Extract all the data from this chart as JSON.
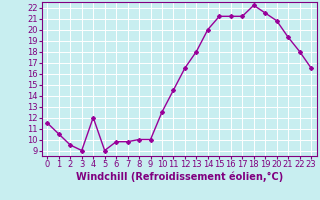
{
  "x": [
    0,
    1,
    2,
    3,
    4,
    5,
    6,
    7,
    8,
    9,
    10,
    11,
    12,
    13,
    14,
    15,
    16,
    17,
    18,
    19,
    20,
    21,
    22,
    23
  ],
  "y": [
    11.5,
    10.5,
    9.5,
    9.0,
    12.0,
    9.0,
    9.8,
    9.8,
    10.0,
    10.0,
    12.5,
    14.5,
    16.5,
    18.0,
    20.0,
    21.2,
    21.2,
    21.2,
    22.2,
    21.5,
    20.8,
    19.3,
    18.0,
    16.5
  ],
  "line_color": "#990099",
  "marker": "D",
  "marker_size": 2.0,
  "linewidth": 1.0,
  "xlabel": "Windchill (Refroidissement éolien,°C)",
  "xlabel_fontsize": 7,
  "ylim": [
    8.5,
    22.5
  ],
  "xlim": [
    -0.5,
    23.5
  ],
  "yticks": [
    9,
    10,
    11,
    12,
    13,
    14,
    15,
    16,
    17,
    18,
    19,
    20,
    21,
    22
  ],
  "xticks": [
    0,
    1,
    2,
    3,
    4,
    5,
    6,
    7,
    8,
    9,
    10,
    11,
    12,
    13,
    14,
    15,
    16,
    17,
    18,
    19,
    20,
    21,
    22,
    23
  ],
  "bg_color": "#c8eef0",
  "grid_color": "#ffffff",
  "tick_color": "#800080",
  "tick_fontsize": 6.0,
  "spine_color": "#800080",
  "xlabel_color": "#800080"
}
